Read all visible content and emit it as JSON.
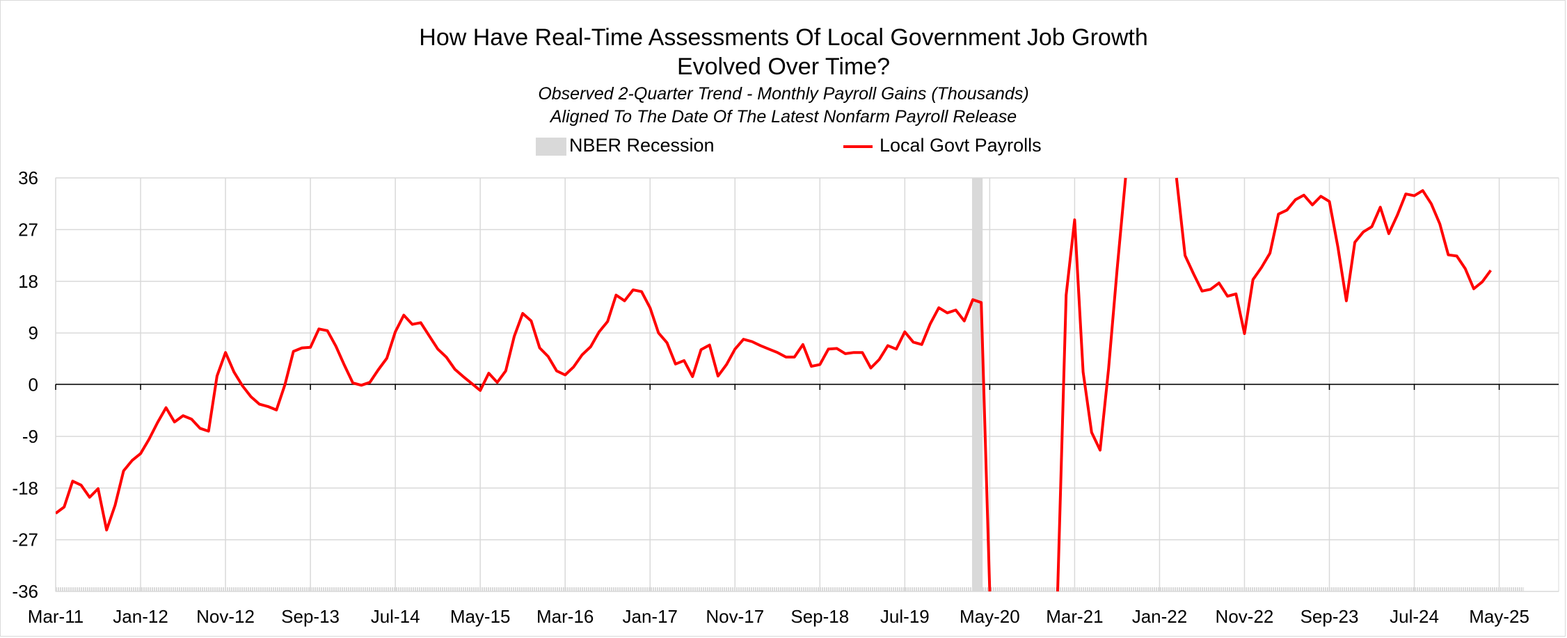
{
  "chart_data": {
    "type": "line",
    "title_line1": "How Have Real-Time Assessments Of Local Government Job Growth",
    "title_line2": "Evolved Over Time?",
    "subtitle_line1": "Observed 2-Quarter Trend - Monthly Payroll Gains (Thousands)",
    "subtitle_line2": "Aligned To The Date Of The Latest Nonfarm Payroll Release",
    "legend": [
      {
        "name": "NBER Recession",
        "color": "#d9d9d9"
      },
      {
        "name": "Local Govt Payrolls",
        "color": "#ff0000"
      }
    ],
    "legend_position": "top",
    "grid": true,
    "ylim": [
      -36,
      36
    ],
    "yticks": [
      36,
      27,
      18,
      9,
      0,
      -9,
      -18,
      -27,
      -36
    ],
    "xticks": [
      "Mar-11",
      "Jan-12",
      "Nov-12",
      "Sep-13",
      "Jul-14",
      "May-15",
      "Mar-16",
      "Jan-17",
      "Nov-17",
      "Sep-18",
      "Jul-19",
      "May-20",
      "Mar-21",
      "Jan-22",
      "Nov-22",
      "Sep-23",
      "Jul-24",
      "May-25"
    ],
    "recession": {
      "start": "Mar-20",
      "end": "Apr-20"
    },
    "series": [
      {
        "name": "Local Govt Payrolls",
        "color": "#ff0000",
        "start": "Mar-11",
        "values": [
          -22.4,
          -21.3,
          -16.8,
          -17.5,
          -19.6,
          -18.1,
          -25.3,
          -21.0,
          -15.0,
          -13.2,
          -12.0,
          -9.5,
          -6.6,
          -4.0,
          -6.5,
          -5.4,
          -6.0,
          -7.6,
          -8.1,
          1.5,
          5.6,
          2.2,
          -0.2,
          -2.1,
          -3.4,
          -3.8,
          -4.4,
          0.0,
          5.8,
          6.4,
          6.5,
          9.7,
          9.4,
          6.7,
          3.4,
          0.3,
          -0.1,
          0.4,
          2.6,
          4.6,
          9.2,
          12.1,
          10.5,
          10.8,
          8.5,
          6.2,
          4.8,
          2.7,
          1.4,
          0.2,
          -1.0,
          2.0,
          0.4,
          2.4,
          8.4,
          12.4,
          11.1,
          6.4,
          4.9,
          2.4,
          1.7,
          3.1,
          5.2,
          6.6,
          9.2,
          11.0,
          15.6,
          14.6,
          16.5,
          16.2,
          13.4,
          9.0,
          7.3,
          3.6,
          4.2,
          1.4,
          6.1,
          6.9,
          1.5,
          3.5,
          6.2,
          7.9,
          7.5,
          6.8,
          6.2,
          5.6,
          4.8,
          4.8,
          7.0,
          3.2,
          3.5,
          6.2,
          6.3,
          5.4,
          5.6,
          5.6,
          2.9,
          4.4,
          6.8,
          6.2,
          9.2,
          7.4,
          7.0,
          10.6,
          13.4,
          12.5,
          13.0,
          11.1,
          14.8,
          14.3,
          -36.0,
          null,
          null,
          null,
          null,
          null,
          null,
          null,
          -36.0,
          15.6,
          28.7,
          2.2,
          -8.3,
          -11.4,
          2.8,
          20.0,
          36.0,
          null,
          null,
          null,
          null,
          null,
          36.0,
          22.5,
          19.3,
          16.3,
          16.6,
          17.7,
          15.4,
          15.8,
          8.9,
          18.3,
          20.4,
          22.9,
          29.7,
          30.4,
          32.2,
          33.0,
          31.3,
          32.8,
          31.9,
          24.0,
          14.6,
          24.8,
          26.6,
          27.5,
          30.9,
          26.3,
          29.5,
          33.2,
          32.9,
          33.8,
          31.5,
          28.0,
          22.6,
          22.4,
          20.2,
          16.7,
          17.9,
          19.9
        ]
      }
    ]
  }
}
